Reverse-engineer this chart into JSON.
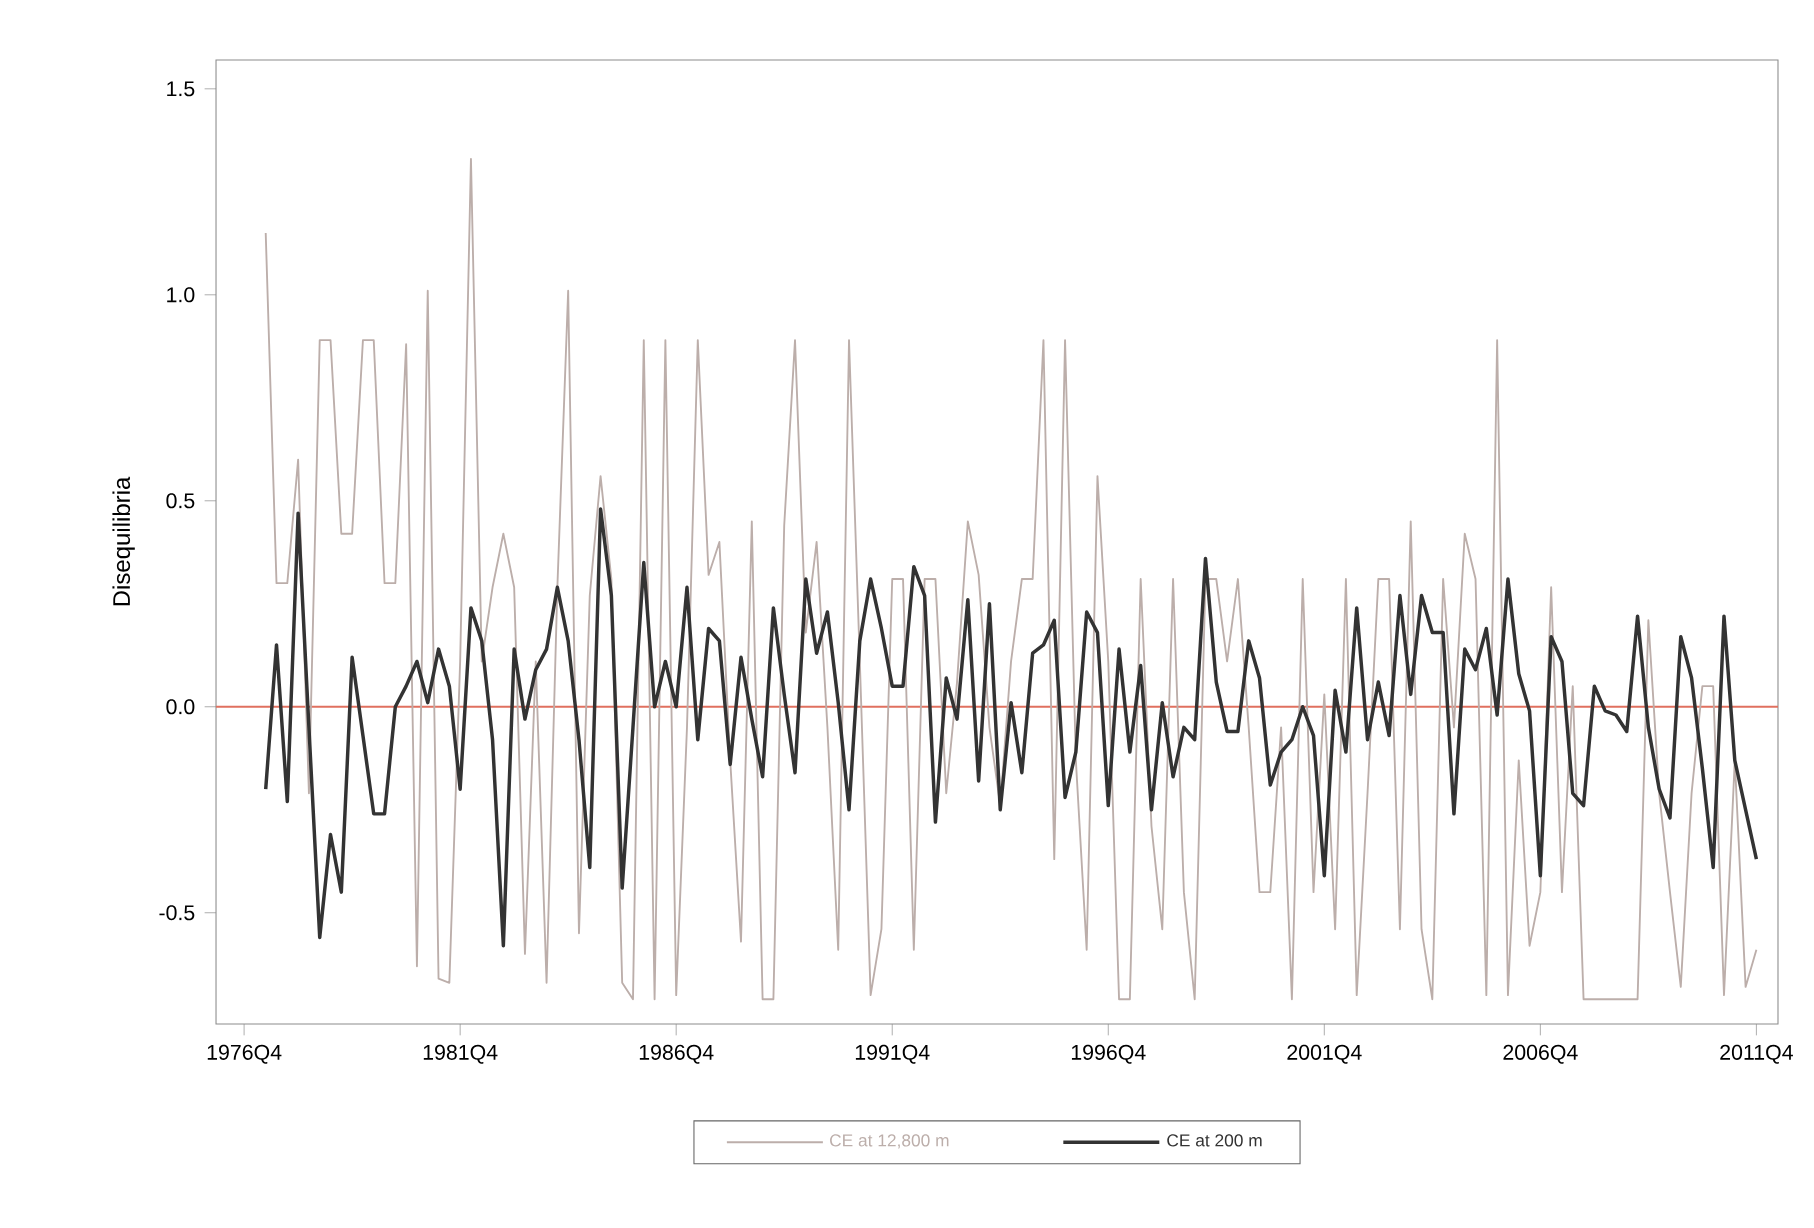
{
  "chart_data": {
    "type": "line",
    "ylabel": "Disequilibria",
    "categories": [
      "1976Q4",
      null,
      null,
      null,
      null,
      null,
      null,
      null,
      null,
      null,
      null,
      null,
      null,
      null,
      null,
      null,
      null,
      null,
      null,
      null,
      "1981Q4",
      null,
      null,
      null,
      null,
      null,
      null,
      null,
      null,
      null,
      null,
      null,
      null,
      null,
      null,
      null,
      null,
      null,
      null,
      null,
      "1986Q4",
      null,
      null,
      null,
      null,
      null,
      null,
      null,
      null,
      null,
      null,
      null,
      null,
      null,
      null,
      null,
      null,
      null,
      null,
      null,
      "1991Q4",
      null,
      null,
      null,
      null,
      null,
      null,
      null,
      null,
      null,
      null,
      null,
      null,
      null,
      null,
      null,
      null,
      null,
      null,
      null,
      "1996Q4",
      null,
      null,
      null,
      null,
      null,
      null,
      null,
      null,
      null,
      null,
      null,
      null,
      null,
      null,
      null,
      null,
      null,
      null,
      null,
      "2001Q4",
      null,
      null,
      null,
      null,
      null,
      null,
      null,
      null,
      null,
      null,
      null,
      null,
      null,
      null,
      null,
      null,
      null,
      null,
      null,
      "2006Q4",
      null,
      null,
      null,
      null,
      null,
      null,
      null,
      null,
      null,
      null,
      null,
      null,
      null,
      null,
      null,
      null,
      null,
      null,
      null,
      "2011Q4"
    ],
    "series": [
      {
        "name": "CE at 12,800 m",
        "color": "#bcaeaa",
        "values": [
          null,
          null,
          1.15,
          0.3,
          0.3,
          0.6,
          -0.21,
          0.89,
          0.89,
          0.42,
          0.42,
          0.89,
          0.89,
          0.3,
          0.3,
          0.88,
          -0.63,
          1.01,
          -0.66,
          -0.67,
          0.11,
          1.33,
          0.11,
          0.29,
          0.42,
          0.29,
          -0.6,
          0.11,
          -0.67,
          0.29,
          1.01,
          -0.55,
          0.27,
          0.56,
          0.31,
          -0.67,
          -0.71,
          0.89,
          -0.71,
          0.89,
          -0.7,
          -0.05,
          0.89,
          0.32,
          0.4,
          -0.13,
          -0.57,
          0.45,
          -0.71,
          -0.71,
          0.44,
          0.89,
          0.18,
          0.4,
          -0.05,
          -0.59,
          0.89,
          0.11,
          -0.7,
          -0.54,
          0.31,
          0.31,
          -0.59,
          0.31,
          0.31,
          -0.21,
          0.06,
          0.45,
          0.32,
          -0.05,
          -0.24,
          0.11,
          0.31,
          0.31,
          0.89,
          -0.37,
          0.89,
          -0.13,
          -0.59,
          0.56,
          0.11,
          -0.71,
          -0.71,
          0.31,
          -0.29,
          -0.54,
          0.31,
          -0.45,
          -0.71,
          0.31,
          0.31,
          0.11,
          0.31,
          -0.05,
          -0.45,
          -0.45,
          -0.05,
          -0.71,
          0.31,
          -0.45,
          0.03,
          -0.54,
          0.31,
          -0.7,
          -0.21,
          0.31,
          0.31,
          -0.54,
          0.45,
          -0.54,
          -0.71,
          0.31,
          -0.05,
          0.42,
          0.31,
          -0.7,
          0.89,
          -0.7,
          -0.13,
          -0.58,
          -0.45,
          0.29,
          -0.45,
          0.05,
          -0.71,
          -0.71,
          -0.71,
          -0.71,
          -0.71,
          -0.71,
          0.21,
          -0.21,
          -0.45,
          -0.68,
          -0.21,
          0.05,
          0.05,
          -0.7,
          -0.13,
          -0.68,
          -0.59
        ]
      },
      {
        "name": "CE at 200 m",
        "color": "#333333",
        "values": [
          null,
          null,
          -0.2,
          0.15,
          -0.23,
          0.47,
          -0.05,
          -0.56,
          -0.31,
          -0.45,
          0.12,
          -0.07,
          -0.26,
          -0.26,
          0.0,
          0.05,
          0.11,
          0.01,
          0.14,
          0.05,
          -0.2,
          0.24,
          0.16,
          -0.08,
          -0.58,
          0.14,
          -0.03,
          0.09,
          0.14,
          0.29,
          0.16,
          -0.08,
          -0.39,
          0.48,
          0.27,
          -0.44,
          -0.05,
          0.35,
          0.0,
          0.11,
          0.0,
          0.29,
          -0.08,
          0.19,
          0.16,
          -0.14,
          0.12,
          -0.03,
          -0.17,
          0.24,
          0.03,
          -0.16,
          0.31,
          0.13,
          0.23,
          0.01,
          -0.25,
          0.16,
          0.31,
          0.19,
          0.05,
          0.05,
          0.34,
          0.27,
          -0.28,
          0.07,
          -0.03,
          0.26,
          -0.18,
          0.25,
          -0.25,
          0.01,
          -0.16,
          0.13,
          0.15,
          0.21,
          -0.22,
          -0.11,
          0.23,
          0.18,
          -0.24,
          0.14,
          -0.11,
          0.1,
          -0.25,
          0.01,
          -0.17,
          -0.05,
          -0.08,
          0.36,
          0.06,
          -0.06,
          -0.06,
          0.16,
          0.07,
          -0.19,
          -0.11,
          -0.08,
          0.0,
          -0.07,
          -0.41,
          0.04,
          -0.11,
          0.24,
          -0.08,
          0.06,
          -0.07,
          0.27,
          0.03,
          0.27,
          0.18,
          0.18,
          -0.26,
          0.14,
          0.09,
          0.19,
          -0.02,
          0.31,
          0.08,
          -0.01,
          -0.41,
          0.17,
          0.11,
          -0.21,
          -0.24,
          0.05,
          -0.01,
          -0.02,
          -0.06,
          0.22,
          -0.05,
          -0.2,
          -0.27,
          0.17,
          0.07,
          -0.15,
          -0.39,
          0.22,
          -0.13,
          -0.25,
          -0.37
        ]
      }
    ],
    "ylim": [
      -0.77,
      1.57
    ],
    "yticks": [
      -0.5,
      {
        "value": 0,
        "label": "0.0"
      },
      0.5,
      {
        "value": 1,
        "label": "1.0"
      },
      1.5
    ],
    "ref_lines": [
      {
        "axis": "y",
        "value": 0,
        "color": "#e0705f"
      }
    ],
    "legend": "bottom",
    "grid": false,
    "marker": "none",
    "line_style": "solid"
  }
}
